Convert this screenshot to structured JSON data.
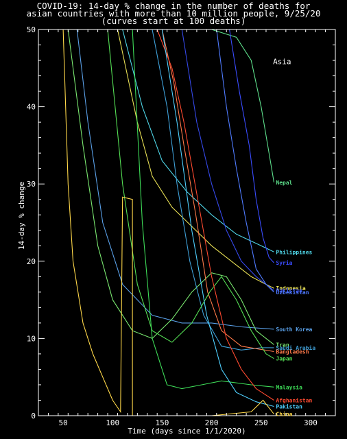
{
  "chart_data": {
    "type": "line",
    "title": "COVID-19: 14-day % change in the number of deaths for",
    "subtitle1": "asian countries with more than 10 million people, 9/25/20",
    "subtitle2": "(curves start at 100 deaths)",
    "xlabel": "Time (days since 1/1/2020)",
    "ylabel": "14-day % change",
    "xlim": [
      25,
      325
    ],
    "ylim": [
      0,
      50
    ],
    "xticks": [
      50,
      100,
      150,
      200,
      250,
      300
    ],
    "yticks": [
      0,
      10,
      20,
      30,
      40,
      50
    ],
    "region_label": "Asia",
    "series": [
      {
        "name": "Nepal",
        "color": "#5ee08c",
        "label_y": 30.2,
        "points": [
          [
            200,
            50
          ],
          [
            225,
            49
          ],
          [
            240,
            46
          ],
          [
            250,
            40
          ],
          [
            258,
            34
          ],
          [
            263,
            30.2
          ]
        ]
      },
      {
        "name": "Philippines",
        "color": "#4fd6e8",
        "label_y": 21.2,
        "points": [
          [
            110,
            50
          ],
          [
            130,
            40
          ],
          [
            150,
            33
          ],
          [
            175,
            29
          ],
          [
            200,
            26
          ],
          [
            225,
            23.5
          ],
          [
            250,
            22
          ],
          [
            263,
            21.2
          ]
        ]
      },
      {
        "name": "Syria",
        "color": "#3a4cff",
        "label_y": 19.8,
        "points": [
          [
            218,
            50
          ],
          [
            228,
            42
          ],
          [
            238,
            35
          ],
          [
            245,
            28
          ],
          [
            252,
            23
          ],
          [
            258,
            20.5
          ],
          [
            263,
            19.8
          ]
        ]
      },
      {
        "name": "Indonesia",
        "color": "#e8e055",
        "label_y": 16.5,
        "points": [
          [
            105,
            50
          ],
          [
            125,
            38
          ],
          [
            140,
            31
          ],
          [
            160,
            27
          ],
          [
            180,
            24.5
          ],
          [
            200,
            22
          ],
          [
            220,
            20
          ],
          [
            240,
            18
          ],
          [
            255,
            17
          ],
          [
            263,
            16.5
          ]
        ]
      },
      {
        "name": "Pakistan",
        "color": "#3548e8",
        "label_y": 16.2,
        "points": [
          [
            170,
            50
          ],
          [
            185,
            38
          ],
          [
            200,
            30
          ],
          [
            215,
            24
          ],
          [
            230,
            20
          ],
          [
            245,
            18
          ],
          [
            263,
            16.2
          ]
        ]
      },
      {
        "name": "Uzbekistan",
        "color": "#4f7bff",
        "label_y": 16.0,
        "points": [
          [
            205,
            50
          ],
          [
            215,
            40
          ],
          [
            225,
            32
          ],
          [
            235,
            25
          ],
          [
            245,
            19
          ],
          [
            255,
            17
          ],
          [
            263,
            16
          ]
        ]
      },
      {
        "name": "South Korea",
        "color": "#5aa0e8",
        "label_y": 11.2,
        "points": [
          [
            64,
            50
          ],
          [
            75,
            38
          ],
          [
            90,
            25
          ],
          [
            110,
            17
          ],
          [
            140,
            13
          ],
          [
            170,
            12
          ],
          [
            200,
            12
          ],
          [
            230,
            11.5
          ],
          [
            263,
            11.2
          ]
        ]
      },
      {
        "name": "Iran",
        "color": "#7ae870",
        "label_y": 9.2,
        "points": [
          [
            55,
            50
          ],
          [
            70,
            35
          ],
          [
            85,
            22
          ],
          [
            100,
            15
          ],
          [
            120,
            11
          ],
          [
            140,
            10
          ],
          [
            160,
            12.5
          ],
          [
            180,
            16
          ],
          [
            200,
            18.5
          ],
          [
            215,
            18
          ],
          [
            230,
            15
          ],
          [
            245,
            11
          ],
          [
            263,
            9.2
          ]
        ]
      },
      {
        "name": "Saudi Arabia",
        "color": "#3fa0d8",
        "label_y": 8.8,
        "points": [
          [
            140,
            50
          ],
          [
            155,
            40
          ],
          [
            165,
            30
          ],
          [
            178,
            20
          ],
          [
            192,
            13
          ],
          [
            210,
            9
          ],
          [
            230,
            8.5
          ],
          [
            250,
            8.8
          ],
          [
            263,
            8.8
          ]
        ]
      },
      {
        "name": "Bangladesh",
        "color": "#ff7a4a",
        "label_y": 8.3,
        "points": [
          [
            150,
            50
          ],
          [
            162,
            43
          ],
          [
            172,
            35
          ],
          [
            184,
            26
          ],
          [
            196,
            16
          ],
          [
            210,
            11
          ],
          [
            230,
            9
          ],
          [
            263,
            8.3
          ]
        ]
      },
      {
        "name": "Japan",
        "color": "#55e055",
        "label_y": 7.4,
        "points": [
          [
            95,
            50
          ],
          [
            110,
            30
          ],
          [
            125,
            17
          ],
          [
            140,
            11
          ],
          [
            160,
            9.5
          ],
          [
            180,
            12
          ],
          [
            198,
            16
          ],
          [
            210,
            18
          ],
          [
            225,
            15
          ],
          [
            240,
            11
          ],
          [
            255,
            8
          ],
          [
            263,
            7.4
          ]
        ]
      },
      {
        "name": "Malaysia",
        "color": "#3edc58",
        "label_y": 3.7,
        "points": [
          [
            120,
            50
          ],
          [
            130,
            25
          ],
          [
            140,
            10
          ],
          [
            155,
            4
          ],
          [
            170,
            3.5
          ],
          [
            190,
            4
          ],
          [
            210,
            4.5
          ],
          [
            240,
            4
          ],
          [
            263,
            3.7
          ]
        ]
      },
      {
        "name": "Afghanistan",
        "color": "#ff4a30",
        "label_y": 2.0,
        "points": [
          [
            145,
            50
          ],
          [
            160,
            45
          ],
          [
            172,
            38
          ],
          [
            186,
            28
          ],
          [
            200,
            18
          ],
          [
            215,
            10
          ],
          [
            230,
            6
          ],
          [
            245,
            3.5
          ],
          [
            263,
            2.0
          ]
        ]
      },
      {
        "name": "Pakistan",
        "color": "#4fd0ff",
        "label_y": 1.2,
        "points": [
          [
            150,
            50
          ],
          [
            165,
            38
          ],
          [
            180,
            24
          ],
          [
            195,
            13
          ],
          [
            210,
            6
          ],
          [
            225,
            3
          ],
          [
            245,
            1.8
          ],
          [
            263,
            1.2
          ]
        ]
      },
      {
        "name": "China",
        "color": "#ffd84a",
        "label_y": 0.2,
        "points": [
          [
            50,
            50
          ],
          [
            55,
            30
          ],
          [
            60,
            20
          ],
          [
            70,
            12
          ],
          [
            80,
            8
          ],
          [
            90,
            5
          ],
          [
            100,
            2
          ],
          [
            108,
            0.5
          ],
          [
            110,
            28.3
          ],
          [
            120,
            28
          ],
          [
            120,
            0
          ],
          [
            150,
            0
          ],
          [
            200,
            0
          ],
          [
            240,
            0.5
          ],
          [
            252,
            2
          ],
          [
            263,
            0.2
          ]
        ]
      }
    ]
  }
}
